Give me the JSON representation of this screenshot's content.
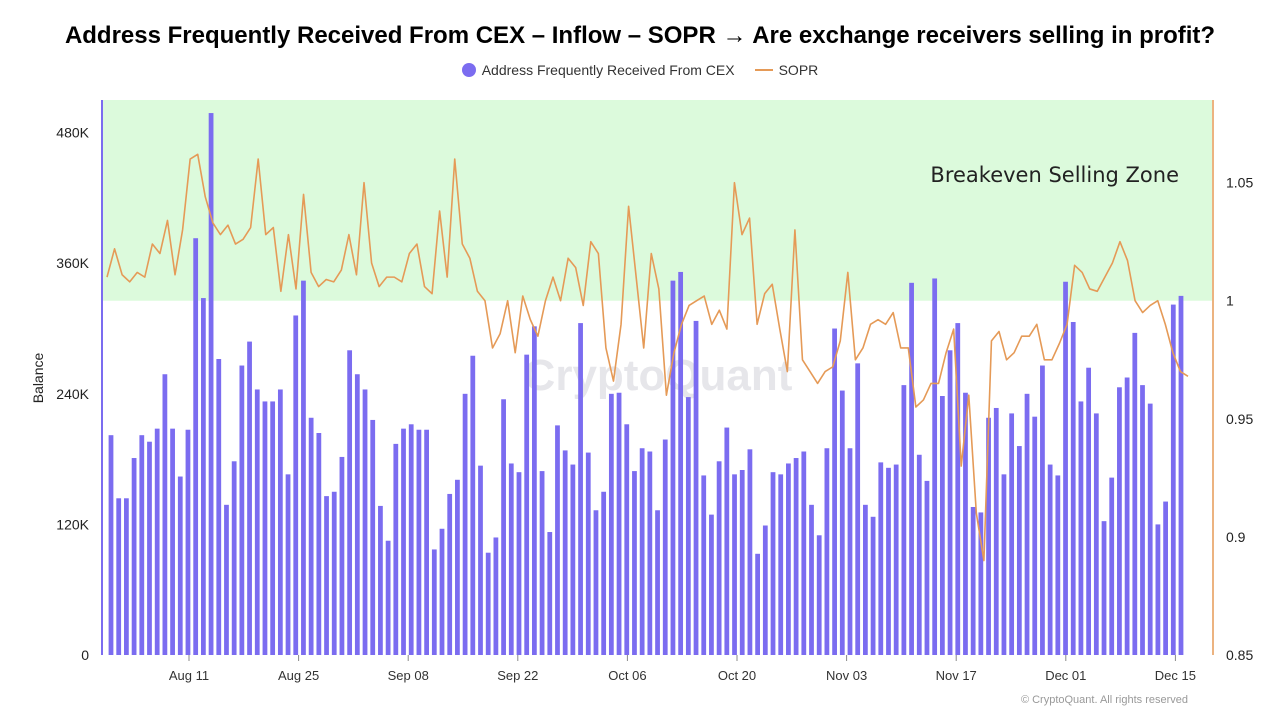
{
  "chart_data": {
    "type": "bar+line",
    "title": "Address Frequently Received From CEX – Inflow – SOPR → Are exchange receivers selling in profit?",
    "ylabel": "Balance",
    "ylim": [
      0,
      510000
    ],
    "y2lim": [
      0.85,
      1.085
    ],
    "y_ticks": [
      "0",
      "120K",
      "240K",
      "360K",
      "480K"
    ],
    "y2_ticks": [
      "0.85",
      "0.9",
      "0.95",
      "1",
      "1.05"
    ],
    "x_ticks": [
      "Aug 11",
      "Aug 25",
      "Sep 08",
      "Sep 22",
      "Oct 06",
      "Oct 20",
      "Nov 03",
      "Nov 17",
      "Dec 01",
      "Dec 15"
    ],
    "zone_label": "Breakeven Selling Zone",
    "zone_range": [
      1,
      1.085
    ],
    "watermark": "CryptoQuant",
    "footer": "© CryptoQuant. All rights reserved",
    "series": [
      {
        "name": "Address Frequently Received From CEX",
        "kind": "bar",
        "color": "#7b6cf0",
        "values": [
          202000,
          144000,
          144000,
          181000,
          202000,
          196000,
          208000,
          258000,
          208000,
          164000,
          207000,
          383000,
          328000,
          498000,
          272000,
          138000,
          178000,
          266000,
          288000,
          244000,
          233000,
          233000,
          244000,
          166000,
          312000,
          344000,
          218000,
          204000,
          146000,
          150000,
          182000,
          280000,
          258000,
          244000,
          216000,
          137000,
          105000,
          194000,
          208000,
          212000,
          207000,
          207000,
          97000,
          116000,
          148000,
          161000,
          240000,
          275000,
          174000,
          94000,
          108000,
          235000,
          176000,
          168000,
          276000,
          302000,
          169000,
          113000,
          211000,
          188000,
          175000,
          305000,
          186000,
          133000,
          150000,
          240000,
          241000,
          212000,
          169000,
          190000,
          187000,
          133000,
          198000,
          344000,
          352000,
          237000,
          307000,
          165000,
          129000,
          178000,
          209000,
          166000,
          170000,
          189000,
          93000,
          119000,
          168000,
          166000,
          176000,
          181000,
          187000,
          138000,
          110000,
          190000,
          300000,
          243000,
          190000,
          268000,
          138000,
          127000,
          177000,
          172000,
          175000,
          248000,
          342000,
          184000,
          160000,
          346000,
          238000,
          280000,
          305000,
          241000,
          136000,
          131000,
          218000,
          227000,
          166000,
          222000,
          192000,
          240000,
          219000,
          266000,
          175000,
          165000,
          343000,
          306000,
          233000,
          264000,
          222000,
          123000,
          163000,
          246000,
          255000,
          296000,
          248000,
          231000,
          120000,
          141000,
          322000,
          330000
        ]
      },
      {
        "name": "SOPR",
        "kind": "line",
        "color": "#e59a57",
        "values": [
          1.01,
          1.022,
          1.011,
          1.008,
          1.012,
          1.01,
          1.024,
          1.02,
          1.034,
          1.011,
          1.03,
          1.06,
          1.062,
          1.044,
          1.033,
          1.028,
          1.032,
          1.024,
          1.026,
          1.031,
          1.06,
          1.028,
          1.031,
          1.004,
          1.028,
          1.005,
          1.045,
          1.012,
          1.006,
          1.009,
          1.008,
          1.013,
          1.028,
          1.011,
          1.05,
          1.016,
          1.006,
          1.01,
          1.01,
          1.008,
          1.02,
          1.024,
          1.006,
          1.003,
          1.038,
          1.01,
          1.06,
          1.024,
          1.018,
          1.004,
          1.0,
          0.98,
          0.986,
          1.0,
          0.978,
          1.002,
          0.992,
          0.985,
          1.0,
          1.01,
          1.0,
          1.018,
          1.014,
          0.998,
          1.025,
          1.02,
          0.98,
          0.966,
          0.99,
          1.04,
          1.01,
          0.98,
          1.02,
          1.005,
          0.96,
          0.978,
          0.99,
          0.998,
          1.0,
          1.002,
          0.99,
          0.996,
          0.988,
          1.05,
          1.028,
          1.035,
          0.99,
          1.003,
          1.007,
          0.988,
          0.97,
          1.03,
          0.975,
          0.97,
          0.965,
          0.97,
          0.972,
          0.983,
          1.012,
          0.975,
          0.98,
          0.99,
          0.992,
          0.99,
          0.995,
          0.98,
          0.98,
          0.955,
          0.958,
          0.965,
          0.965,
          0.978,
          0.988,
          0.93,
          0.96,
          0.91,
          0.89,
          0.983,
          0.987,
          0.975,
          0.978,
          0.985,
          0.985,
          0.99,
          0.975,
          0.975,
          0.982,
          0.99,
          1.015,
          1.012,
          1.005,
          1.004,
          1.01,
          1.016,
          1.025,
          1.017,
          1.0,
          0.995,
          0.998,
          1.0,
          0.99,
          0.978,
          0.97,
          0.968
        ]
      }
    ]
  }
}
